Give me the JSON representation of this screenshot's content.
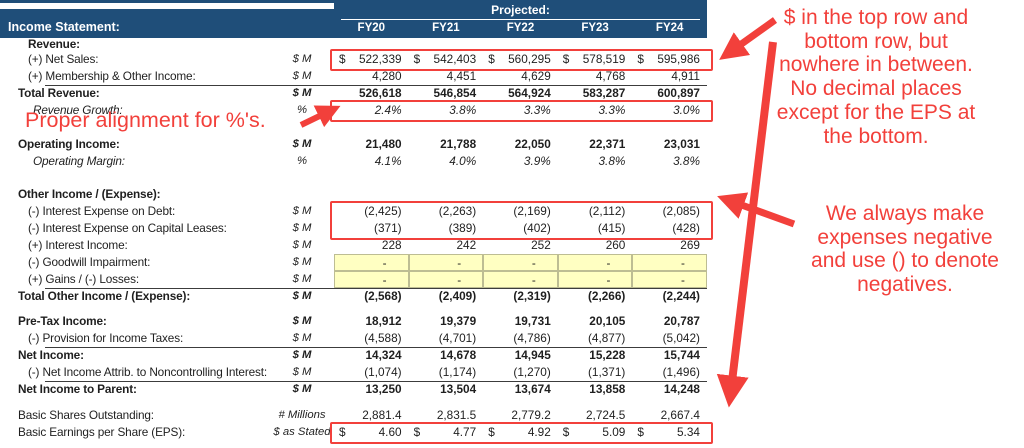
{
  "sheet": {
    "title": "Income Statement:",
    "projected_label": "Projected:",
    "columns": [
      "FY20",
      "FY21",
      "FY22",
      "FY23",
      "FY24"
    ],
    "rows": [
      {
        "label": "Revenue:",
        "indent": 2,
        "bold": true,
        "h": 13
      },
      {
        "label": "(+) Net Sales:",
        "unit": "$ M",
        "indent": 2,
        "dollar": true,
        "redbox": "net-sales",
        "values": [
          "522,339",
          "542,403",
          "560,295",
          "578,519",
          "595,986"
        ]
      },
      {
        "label": "(+) Membership & Other Income:",
        "unit": "$ M",
        "indent": 2,
        "values": [
          "4,280",
          "4,451",
          "4,629",
          "4,768",
          "4,911"
        ]
      },
      {
        "label": "Total Revenue:",
        "unit": "$ M",
        "indent": 1,
        "bold": true,
        "top_border": true,
        "values": [
          "526,618",
          "546,854",
          "564,924",
          "583,287",
          "600,897"
        ]
      },
      {
        "label": "Revenue Growth:",
        "unit": "%",
        "indent": 3,
        "italic": true,
        "redbox": "revenue-growth",
        "values": [
          "2.4%",
          "3.8%",
          "3.3%",
          "3.3%",
          "3.0%"
        ]
      },
      {
        "spacer": true,
        "height": 17
      },
      {
        "label": "Operating Income:",
        "unit": "$ M",
        "indent": 1,
        "bold": true,
        "values": [
          "21,480",
          "21,788",
          "22,050",
          "22,371",
          "23,031"
        ]
      },
      {
        "label": "Operating Margin:",
        "unit": "%",
        "indent": 3,
        "italic": true,
        "values": [
          "4.1%",
          "4.0%",
          "3.9%",
          "3.8%",
          "3.8%"
        ]
      },
      {
        "spacer": true,
        "height": 16
      },
      {
        "label": "Other Income / (Expense):",
        "indent": 1,
        "bold": true
      },
      {
        "label": "(-) Interest Expense on Debt:",
        "unit": "$ M",
        "indent": 2,
        "redbox": "interest-expense",
        "values": [
          "(2,425)",
          "(2,263)",
          "(2,169)",
          "(2,112)",
          "(2,085)"
        ]
      },
      {
        "label": "(-) Interest Expense on Capital Leases:",
        "unit": "$ M",
        "indent": 2,
        "redbox": "interest-expense",
        "values": [
          "(371)",
          "(389)",
          "(402)",
          "(415)",
          "(428)"
        ]
      },
      {
        "label": "(+) Interest Income:",
        "unit": "$ M",
        "indent": 2,
        "values": [
          "228",
          "242",
          "252",
          "260",
          "269"
        ]
      },
      {
        "label": "(-) Goodwill Impairment:",
        "unit": "$ M",
        "indent": 2,
        "yellow": true,
        "values": [
          "-",
          "-",
          "-",
          "-",
          "-"
        ]
      },
      {
        "label": "(+) Gains / (-) Losses:",
        "unit": "$ M",
        "indent": 2,
        "yellow": true,
        "values": [
          "-",
          "-",
          "-",
          "-",
          "-"
        ]
      },
      {
        "label": "Total Other Income / (Expense):",
        "unit": "$ M",
        "indent": 1,
        "bold": true,
        "top_border": true,
        "values": [
          "(2,568)",
          "(2,409)",
          "(2,319)",
          "(2,266)",
          "(2,244)"
        ]
      },
      {
        "spacer": true,
        "height": 8
      },
      {
        "label": "Pre-Tax Income:",
        "unit": "$ M",
        "indent": 1,
        "bold": true,
        "values": [
          "18,912",
          "19,379",
          "19,731",
          "20,105",
          "20,787"
        ]
      },
      {
        "label": "(-) Provision for Income Taxes:",
        "unit": "$ M",
        "indent": 2,
        "values": [
          "(4,588)",
          "(4,701)",
          "(4,786)",
          "(4,877)",
          "(5,042)"
        ]
      },
      {
        "label": "Net Income:",
        "unit": "$ M",
        "indent": 1,
        "bold": true,
        "top_border": true,
        "values": [
          "14,324",
          "14,678",
          "14,945",
          "15,228",
          "15,744"
        ]
      },
      {
        "label": "(-) Net Income Attrib. to Noncontrolling Interest:",
        "unit": "$ M",
        "indent": 2,
        "values": [
          "(1,074)",
          "(1,174)",
          "(1,270)",
          "(1,371)",
          "(1,496)"
        ]
      },
      {
        "label": "Net Income to Parent:",
        "unit": "$ M",
        "indent": 1,
        "bold": true,
        "top_border": true,
        "values": [
          "13,250",
          "13,504",
          "13,674",
          "13,858",
          "14,248"
        ]
      },
      {
        "spacer": true,
        "height": 9
      },
      {
        "label": "Basic Shares Outstanding:",
        "unit": "# Millions",
        "indent": 1,
        "values": [
          "2,881.4",
          "2,831.5",
          "2,779.2",
          "2,724.5",
          "2,667.4"
        ]
      },
      {
        "label": "Basic Earnings per Share (EPS):",
        "unit": "$ as Stated",
        "indent": 1,
        "dollar": true,
        "redbox": "eps",
        "values": [
          "4.60",
          "4.77",
          "4.92",
          "5.09",
          "5.34"
        ]
      }
    ]
  },
  "annotations": {
    "dollar_note": "$ in the top row and\nbottom row, but\nnowhere in between.\nNo decimal places\nexcept for the EPS at\nthe bottom.",
    "expenses_note": "We always make\nexpenses negative\nand use () to denote\nnegatives.",
    "alignment_note": "Proper alignment for %'s."
  },
  "colors": {
    "header_navy": "#1F4E79",
    "highlight_yellow": "#FFFFC2",
    "annotation_red": "#F2403B"
  }
}
